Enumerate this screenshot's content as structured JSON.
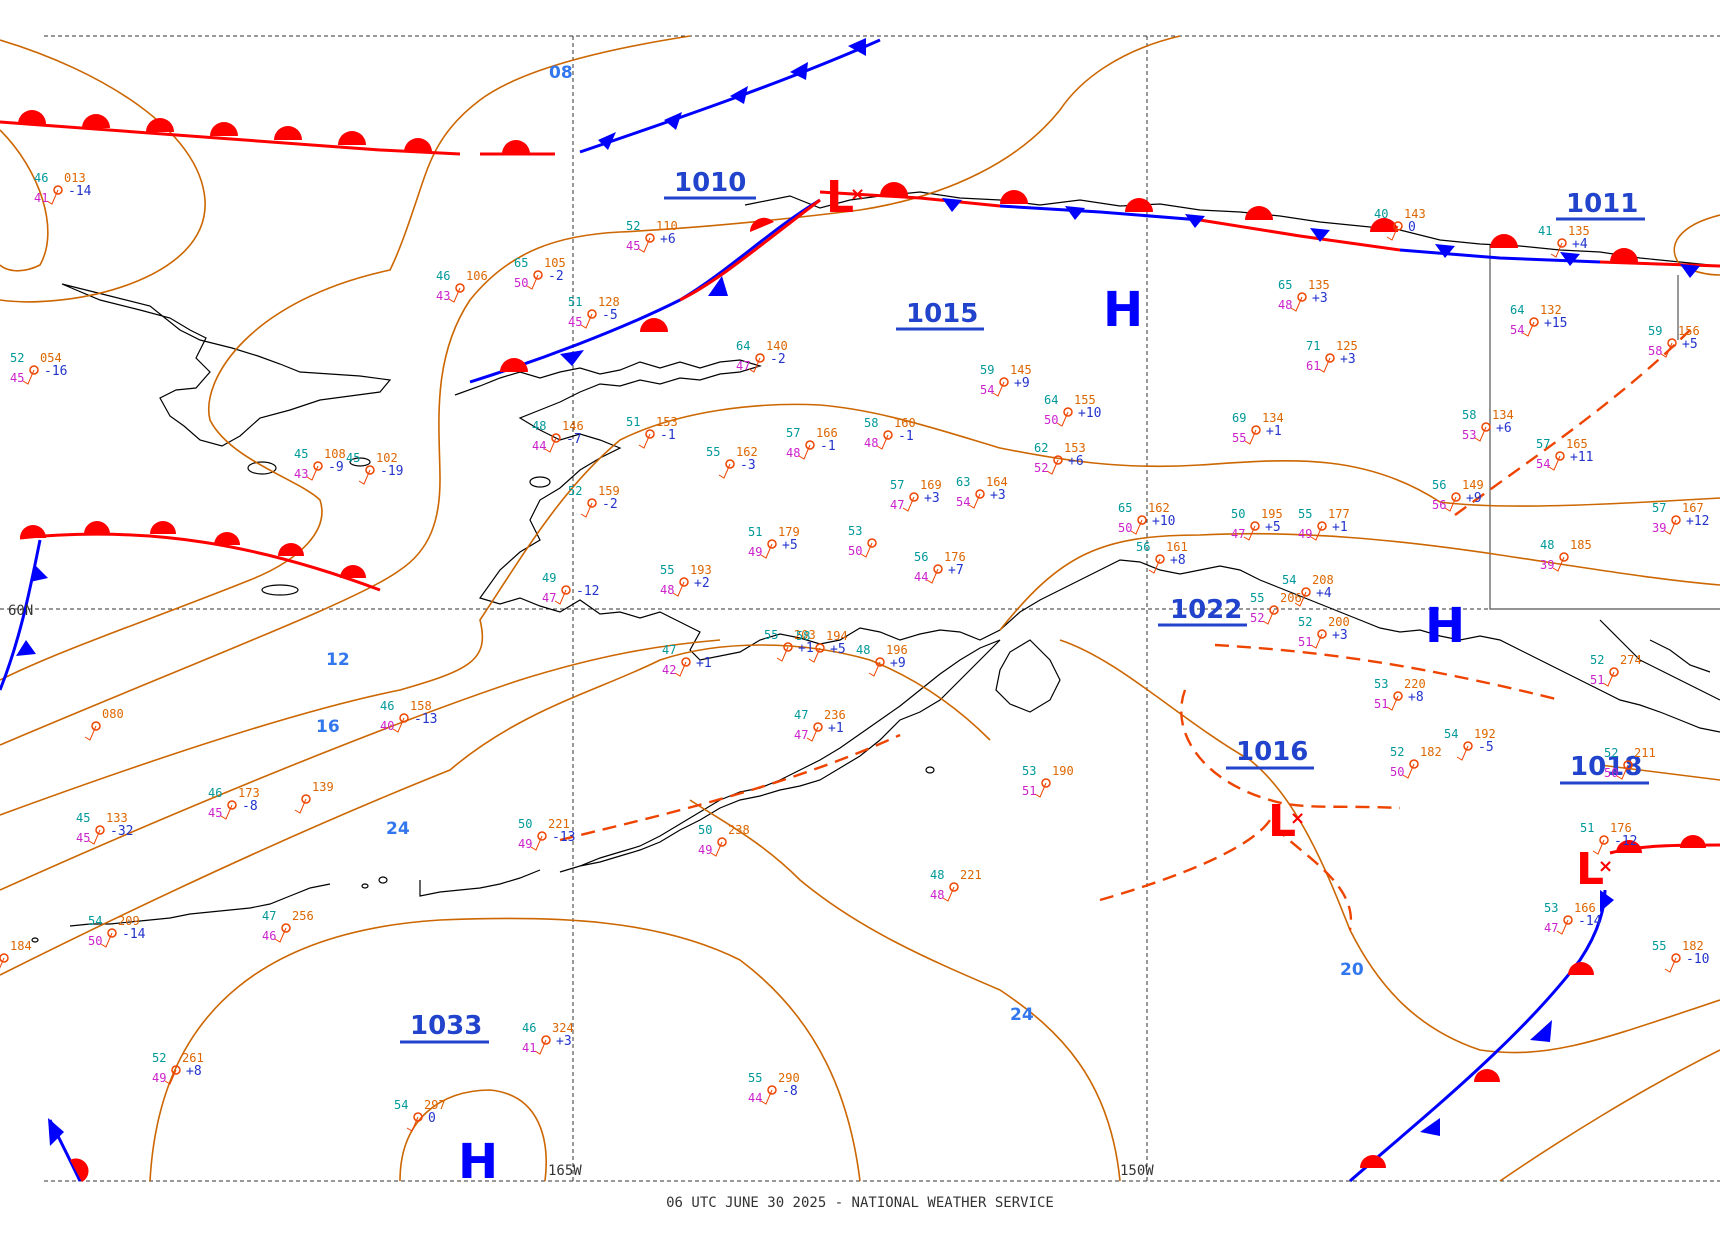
{
  "footer": "06 UTC JUNE 30 2025 - NATIONAL WEATHER SERVICE",
  "longitude_labels": [
    "165W",
    "150W"
  ],
  "latitude_labels": [
    "60N"
  ],
  "pressure_centers": [
    {
      "type": "L",
      "value": "1010"
    },
    {
      "type": "H",
      "value": "1015"
    },
    {
      "type": "L",
      "value": "1011"
    },
    {
      "type": "H",
      "value": "1022"
    },
    {
      "type": "L",
      "value": "1016"
    },
    {
      "type": "L",
      "value": "1018"
    },
    {
      "type": "H",
      "value": "1033"
    }
  ],
  "isobar_labels": [
    "08",
    "12",
    "16",
    "24",
    "24",
    "20"
  ],
  "stations": [
    {
      "t": "46",
      "p": "013",
      "tend": "-14",
      "td": "41"
    },
    {
      "t": "52",
      "p": "054",
      "tend": "-16",
      "td": "45"
    },
    {
      "t": "46",
      "p": "106",
      "td": "43"
    },
    {
      "t": "65",
      "p": "105",
      "tend": "-2",
      "td": "50"
    },
    {
      "t": "51",
      "p": "128",
      "tend": "-5",
      "td": "45"
    },
    {
      "t": "52",
      "p": "110",
      "tend": "+6",
      "td": "45"
    },
    {
      "t": "45",
      "p": "108",
      "tend": "-9",
      "td": "43"
    },
    {
      "t": "45",
      "p": "102",
      "tend": "-19"
    },
    {
      "t": "48",
      "p": "146",
      "tend": "-7",
      "td": "44"
    },
    {
      "t": "51",
      "p": "153",
      "tend": "-1"
    },
    {
      "t": "52",
      "p": "159",
      "tend": "-2"
    },
    {
      "t": "55",
      "p": "162",
      "tend": "-3"
    },
    {
      "t": "57",
      "p": "166",
      "tend": "-1",
      "td": "48"
    },
    {
      "t": "58",
      "p": "160",
      "tend": "-1",
      "td": "48"
    },
    {
      "t": "64",
      "p": "140",
      "tend": "-2",
      "td": "47"
    },
    {
      "t": "59",
      "p": "145",
      "tend": "+9",
      "td": "54"
    },
    {
      "t": "64",
      "p": "155",
      "tend": "+10",
      "td": "50"
    },
    {
      "t": "62",
      "p": "153",
      "tend": "+6",
      "td": "52"
    },
    {
      "t": "57",
      "p": "169",
      "tend": "+3",
      "td": "47"
    },
    {
      "t": "63",
      "p": "164",
      "tend": "+3",
      "td": "54"
    },
    {
      "t": "51",
      "p": "179",
      "tend": "+5",
      "td": "49"
    },
    {
      "t": "53",
      "td": "50"
    },
    {
      "t": "56",
      "p": "176",
      "tend": "+7",
      "td": "44"
    },
    {
      "t": "55",
      "p": "193",
      "tend": "+2",
      "td": "48"
    },
    {
      "t": "49",
      "tend": "-12",
      "td": "47"
    },
    {
      "t": "65",
      "p": "162",
      "tend": "+10",
      "td": "50"
    },
    {
      "t": "50",
      "p": "195",
      "tend": "+5",
      "td": "47"
    },
    {
      "t": "55",
      "p": "177",
      "tend": "+1",
      "td": "49"
    },
    {
      "t": "69",
      "p": "134",
      "tend": "+1",
      "td": "55"
    },
    {
      "t": "65",
      "p": "135",
      "tend": "+3",
      "td": "48"
    },
    {
      "t": "71",
      "p": "125",
      "tend": "+3",
      "td": "61"
    },
    {
      "t": "40",
      "p": "143",
      "tend": "0"
    },
    {
      "t": "41",
      "p": "135",
      "tend": "+4"
    },
    {
      "t": "64",
      "p": "132",
      "tend": "+15",
      "td": "54"
    },
    {
      "t": "58",
      "p": "134",
      "tend": "+6",
      "td": "53"
    },
    {
      "t": "57",
      "p": "165",
      "tend": "+11",
      "td": "54"
    },
    {
      "t": "56",
      "p": "149",
      "tend": "+9",
      "td": "56"
    },
    {
      "t": "48",
      "p": "185",
      "td": "39"
    },
    {
      "t": "59",
      "p": "156",
      "tend": "+5",
      "td": "58"
    },
    {
      "t": "57",
      "p": "167",
      "tend": "+12",
      "td": "39"
    },
    {
      "t": "55",
      "p": "203",
      "tend": "+1"
    },
    {
      "t": "58",
      "p": "194",
      "tend": "+5"
    },
    {
      "t": "48",
      "p": "196",
      "tend": "+9"
    },
    {
      "t": "47",
      "tend": "+1",
      "td": "42"
    },
    {
      "t": "47",
      "p": "236",
      "tend": "+1",
      "td": "47"
    },
    {
      "t": "52",
      "p": "200",
      "tend": "+3",
      "td": "51"
    },
    {
      "t": "53",
      "p": "220",
      "tend": "+8",
      "td": "51"
    },
    {
      "t": "54",
      "p": "192",
      "tend": "-5"
    },
    {
      "t": "52",
      "p": "182",
      "td": "50"
    },
    {
      "t": "53",
      "p": "190",
      "td": "51"
    },
    {
      "t": "48",
      "p": "221",
      "td": "48"
    },
    {
      "t": "50",
      "p": "238",
      "td": "49"
    },
    {
      "t": "50",
      "p": "221",
      "tend": "-13",
      "td": "49"
    },
    {
      "t": "46",
      "p": "173",
      "tend": "-8",
      "td": "45"
    },
    {
      "t": "45",
      "p": "133",
      "tend": "-32",
      "td": "45"
    },
    {
      "t": "46",
      "p": "158",
      "tend": "-13",
      "td": "40"
    },
    {
      "p": "080"
    },
    {
      "p": "139"
    },
    {
      "t": "54",
      "p": "209",
      "tend": "-14",
      "td": "50"
    },
    {
      "t": "47",
      "p": "256",
      "td": "46"
    },
    {
      "p": "184"
    },
    {
      "t": "52",
      "p": "261",
      "tend": "+8",
      "td": "49"
    },
    {
      "t": "46",
      "p": "324",
      "tend": "+3",
      "td": "41"
    },
    {
      "t": "55",
      "p": "290",
      "tend": "-8",
      "td": "44"
    },
    {
      "t": "54",
      "p": "297",
      "tend": "0"
    },
    {
      "t": "51",
      "p": "176",
      "tend": "-12"
    },
    {
      "t": "53",
      "p": "166",
      "tend": "-14",
      "td": "47"
    },
    {
      "t": "55",
      "p": "182",
      "tend": "-10"
    },
    {
      "t": "52",
      "p": "274",
      "td": "51"
    },
    {
      "t": "52",
      "p": "211",
      "td": "50"
    },
    {
      "t": "56",
      "p": "161",
      "tend": "+8"
    },
    {
      "t": "55",
      "p": "206",
      "td": "52"
    },
    {
      "t": "54",
      "p": "208",
      "tend": "+4"
    }
  ]
}
